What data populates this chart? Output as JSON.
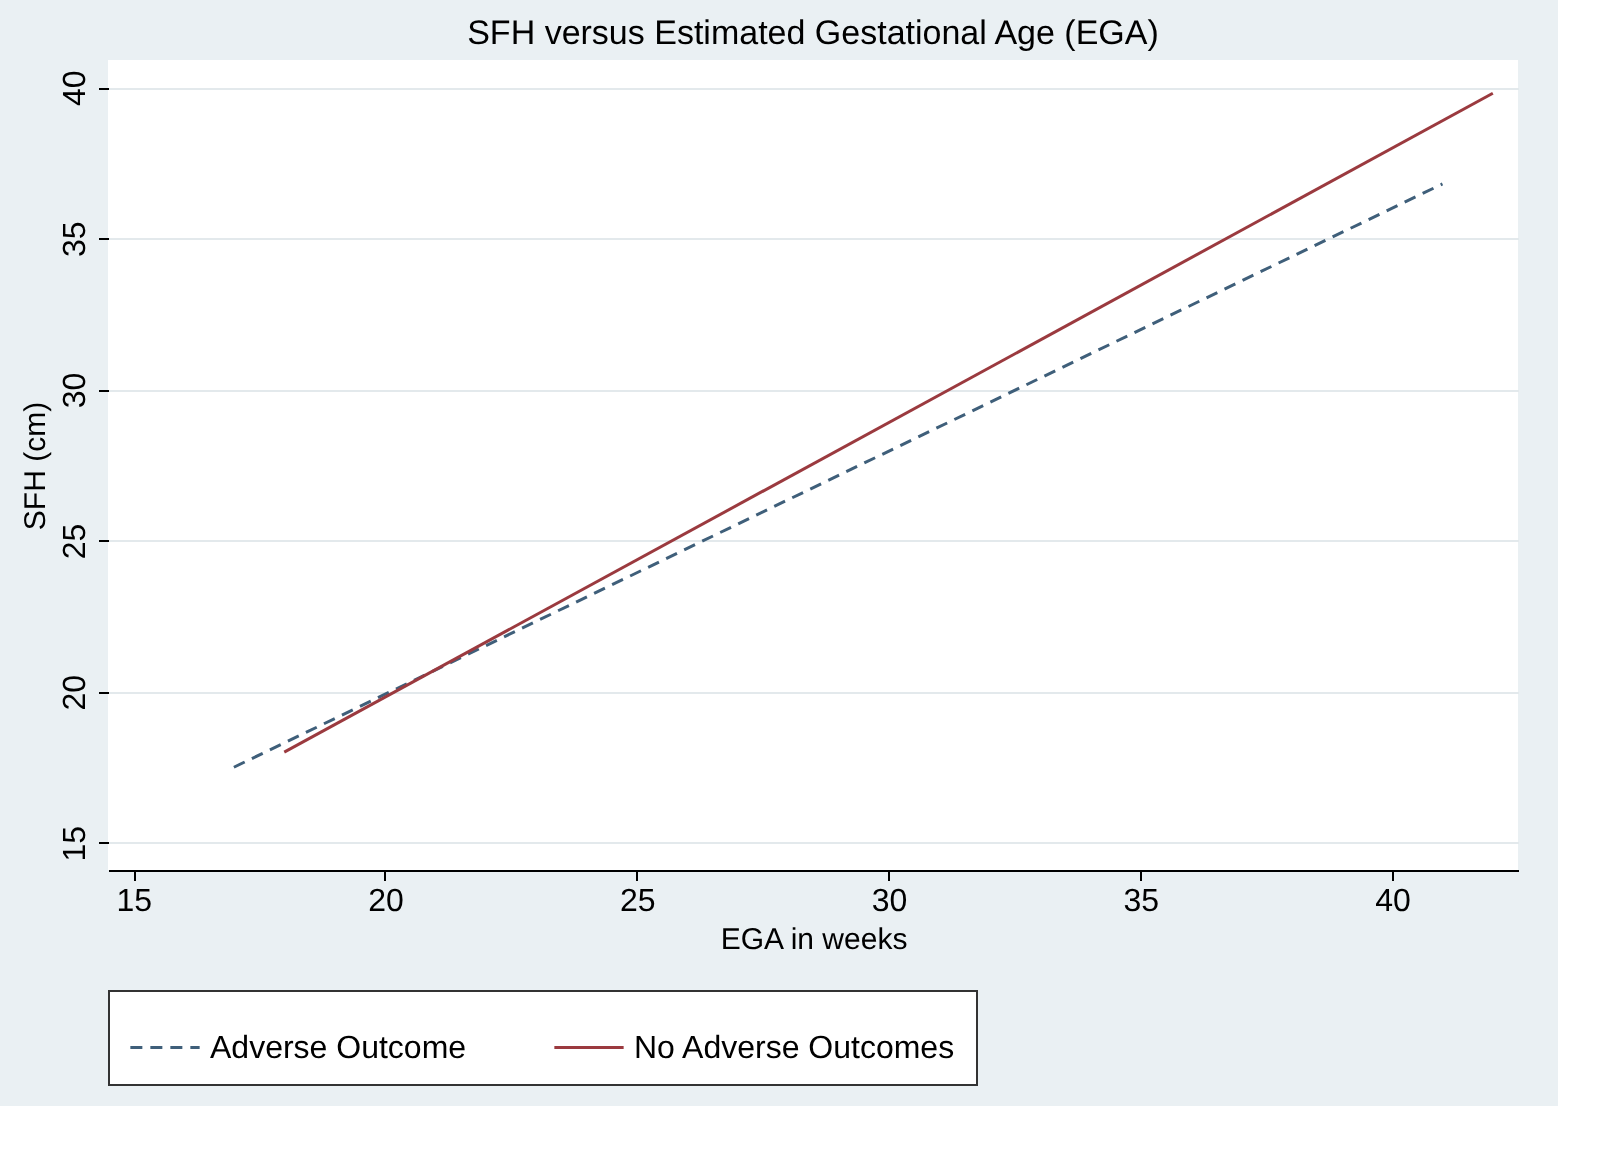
{
  "chart_data": {
    "type": "line",
    "title": "SFH versus Estimated Gestational Age (EGA)",
    "xlabel": "EGA in weeks",
    "ylabel": "SFH (cm)",
    "xlim": [
      14.5,
      42.5
    ],
    "xticks": [
      15,
      20,
      25,
      30,
      35,
      40
    ],
    "ylim": [
      14.1,
      40.9
    ],
    "yticks": [
      15,
      20,
      25,
      30,
      35,
      40
    ],
    "grid": "y",
    "legend": "bottom",
    "marker": "none",
    "series": [
      {
        "name": "Adverse Outcome",
        "color": "#3f5f7a",
        "line_style": "dashed",
        "x": [
          17,
          41
        ],
        "values": [
          17.5,
          36.8
        ]
      },
      {
        "name": "No Adverse Outcomes",
        "color": "#9b3a3f",
        "line_style": "solid",
        "x": [
          18,
          42
        ],
        "values": [
          18.0,
          39.8
        ]
      }
    ]
  }
}
